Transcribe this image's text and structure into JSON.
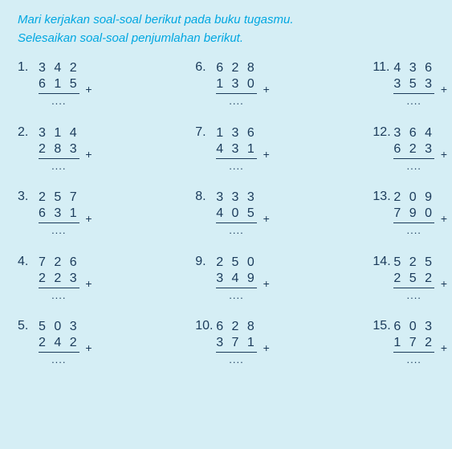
{
  "colors": {
    "background": "#d5eef5",
    "instruction": "#00a7e1",
    "text": "#1a3a5a"
  },
  "instruction_line1": "Mari kerjakan soal-soal berikut pada buku tugasmu.",
  "instruction_line2": "Selesaikan soal-soal penjumlahan berikut.",
  "dots": "....",
  "operator": "+",
  "problems": [
    {
      "n": "1.",
      "a": "3 4 2",
      "b": "6 1 5"
    },
    {
      "n": "2.",
      "a": "3 1 4",
      "b": "2 8 3"
    },
    {
      "n": "3.",
      "a": "2 5 7",
      "b": "6 3 1"
    },
    {
      "n": "4.",
      "a": "7 2 6",
      "b": "2 2 3"
    },
    {
      "n": "5.",
      "a": "5 0 3",
      "b": "2 4 2"
    },
    {
      "n": "6.",
      "a": "6 2 8",
      "b": "1 3 0"
    },
    {
      "n": "7.",
      "a": "1 3 6",
      "b": "4 3 1"
    },
    {
      "n": "8.",
      "a": "3 3 3",
      "b": "4 0 5"
    },
    {
      "n": "9.",
      "a": "2 5 0",
      "b": "3 4 9"
    },
    {
      "n": "10.",
      "a": "6 2 8",
      "b": "3 7 1"
    },
    {
      "n": "11.",
      "a": "4 3 6",
      "b": "3 5 3"
    },
    {
      "n": "12.",
      "a": "3 6 4",
      "b": "6 2 3"
    },
    {
      "n": "13.",
      "a": "2 0 9",
      "b": "7 9 0"
    },
    {
      "n": "14.",
      "a": "5 2 5",
      "b": "2 5 2"
    },
    {
      "n": "15.",
      "a": "6 0 3",
      "b": "1 7 2"
    }
  ]
}
